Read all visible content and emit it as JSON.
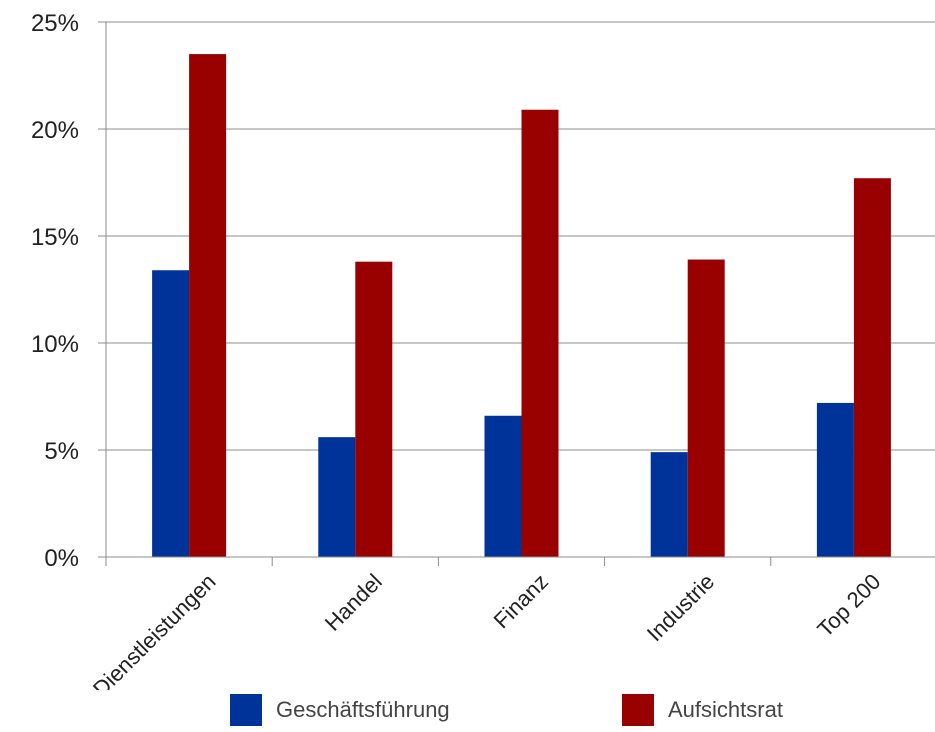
{
  "chart_data": {
    "type": "bar",
    "title": "",
    "xlabel": "",
    "ylabel": "",
    "categories": [
      "Dienstleistungen",
      "Handel",
      "Finanz",
      "Industrie",
      "Top 200"
    ],
    "series": [
      {
        "name": "Geschäftsführung",
        "color": "#003399",
        "values": [
          13.4,
          5.6,
          6.6,
          4.9,
          7.2
        ]
      },
      {
        "name": "Aufsichtsrat",
        "color": "#990000",
        "values": [
          23.5,
          13.8,
          20.9,
          13.9,
          17.7
        ]
      }
    ],
    "ylim": [
      0,
      25
    ],
    "yticks": [
      "0%",
      "5%",
      "10%",
      "15%",
      "20%",
      "25%"
    ],
    "grid": true,
    "legend_position": "bottom"
  },
  "legend": {
    "items": [
      {
        "label": "Geschäftsführung",
        "color": "#003399"
      },
      {
        "label": "Aufsichtsrat",
        "color": "#990000"
      }
    ]
  }
}
